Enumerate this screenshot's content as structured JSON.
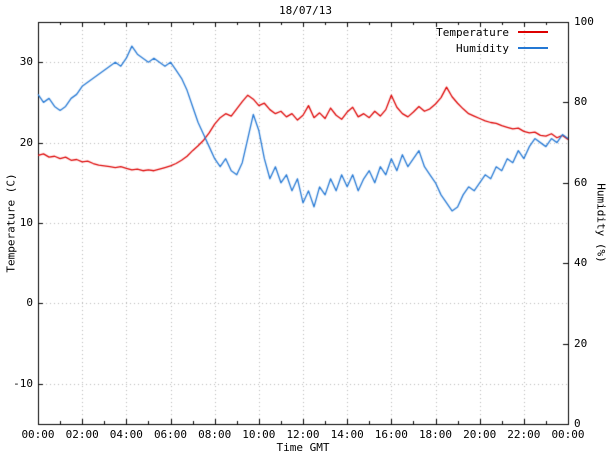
{
  "chart_data": {
    "type": "line",
    "title": "18/07/13",
    "xlabel": "Time GMT",
    "ylabel_left": "Temperature (C)",
    "ylabel_right": "Humidity (%)",
    "xlim": [
      0,
      24
    ],
    "x_tick_hours": [
      0,
      2,
      4,
      6,
      8,
      10,
      12,
      14,
      16,
      18,
      20,
      22,
      24
    ],
    "x_ticks": [
      "00:00",
      "02:00",
      "04:00",
      "06:00",
      "08:00",
      "10:00",
      "12:00",
      "14:00",
      "16:00",
      "18:00",
      "20:00",
      "22:00",
      "00:00"
    ],
    "x_minor_step_hours": 1,
    "ylim_left": [
      -15,
      35
    ],
    "yticks_left": [
      -10,
      0,
      10,
      20,
      30
    ],
    "ylim_right": [
      0,
      100
    ],
    "yticks_right": [
      0,
      20,
      40,
      60,
      80,
      100
    ],
    "grid": true,
    "grid_color": "#b8b8b8",
    "border_color": "#000000",
    "legend_position": "top-right",
    "sample_interval_hours": 0.25,
    "series": [
      {
        "name": "Temperature",
        "axis": "left",
        "color": "#dd0000",
        "values": [
          18.4,
          18.6,
          18.2,
          18.3,
          18.0,
          18.2,
          17.8,
          17.9,
          17.6,
          17.7,
          17.4,
          17.2,
          17.1,
          17.0,
          16.9,
          17.0,
          16.8,
          16.6,
          16.7,
          16.5,
          16.6,
          16.5,
          16.7,
          16.9,
          17.1,
          17.4,
          17.8,
          18.3,
          19.0,
          19.6,
          20.3,
          21.2,
          22.3,
          23.1,
          23.6,
          23.3,
          24.2,
          25.1,
          25.9,
          25.4,
          24.6,
          24.9,
          24.1,
          23.6,
          23.9,
          23.2,
          23.6,
          22.8,
          23.4,
          24.6,
          23.1,
          23.7,
          23.0,
          24.3,
          23.4,
          22.9,
          23.8,
          24.4,
          23.2,
          23.6,
          23.1,
          23.9,
          23.3,
          24.1,
          25.9,
          24.4,
          23.6,
          23.2,
          23.8,
          24.5,
          23.9,
          24.2,
          24.8,
          25.6,
          26.9,
          25.7,
          24.9,
          24.2,
          23.6,
          23.3,
          23.0,
          22.7,
          22.5,
          22.4,
          22.1,
          21.9,
          21.7,
          21.8,
          21.4,
          21.2,
          21.3,
          20.9,
          20.8,
          21.1,
          20.6,
          20.9,
          20.4
        ]
      },
      {
        "name": "Humidity",
        "axis": "right",
        "color": "#2478d4",
        "values": [
          82,
          80,
          81,
          79,
          78,
          79,
          81,
          82,
          84,
          85,
          86,
          87,
          88,
          89,
          90,
          89,
          91,
          94,
          92,
          91,
          90,
          91,
          90,
          89,
          90,
          88,
          86,
          83,
          79,
          75,
          72,
          69,
          66,
          64,
          66,
          63,
          62,
          65,
          71,
          77,
          73,
          66,
          61,
          64,
          60,
          62,
          58,
          61,
          55,
          58,
          54,
          59,
          57,
          61,
          58,
          62,
          59,
          62,
          58,
          61,
          63,
          60,
          64,
          62,
          66,
          63,
          67,
          64,
          66,
          68,
          64,
          62,
          60,
          57,
          55,
          53,
          54,
          57,
          59,
          58,
          60,
          62,
          61,
          64,
          63,
          66,
          65,
          68,
          66,
          69,
          71,
          70,
          69,
          71,
          70,
          72,
          71
        ]
      }
    ]
  }
}
